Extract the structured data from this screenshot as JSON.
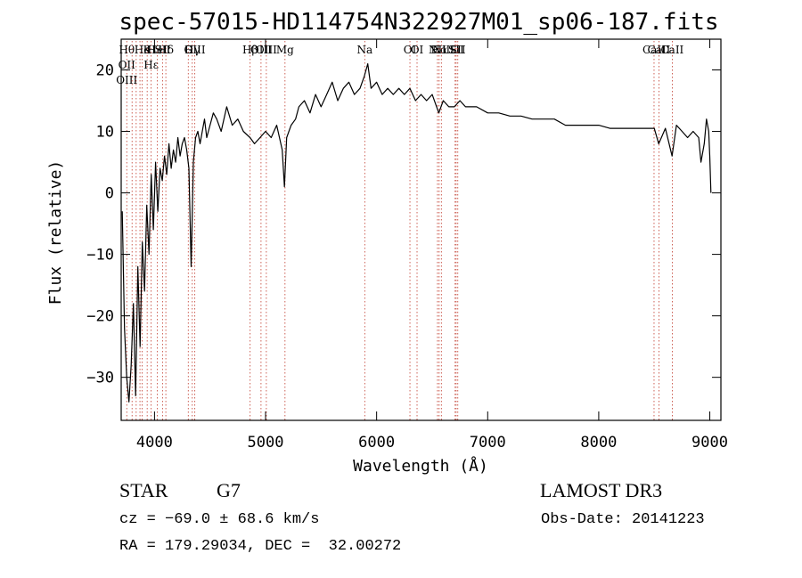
{
  "chart_data": {
    "type": "line",
    "title": "spec-57015-HD114754N322927M01_sp06-187.fits",
    "xlabel": "Wavelength (Å)",
    "ylabel": "Flux (relative)",
    "xlim": [
      3700,
      9100
    ],
    "ylim": [
      -37,
      25
    ],
    "xticks": [
      4000,
      5000,
      6000,
      7000,
      8000,
      9000
    ],
    "yticks": [
      -30,
      -20,
      -10,
      0,
      10,
      20
    ],
    "grid": false,
    "series": [
      {
        "color": "#000000",
        "x": [
          3710,
          3730,
          3750,
          3770,
          3790,
          3810,
          3830,
          3850,
          3870,
          3890,
          3910,
          3930,
          3950,
          3970,
          3990,
          4010,
          4030,
          4050,
          4070,
          4090,
          4110,
          4130,
          4150,
          4170,
          4190,
          4210,
          4230,
          4250,
          4270,
          4290,
          4310,
          4330,
          4350,
          4370,
          4390,
          4410,
          4430,
          4450,
          4470,
          4500,
          4530,
          4560,
          4600,
          4650,
          4700,
          4750,
          4800,
          4860,
          4900,
          4950,
          5000,
          5050,
          5100,
          5150,
          5170,
          5190,
          5230,
          5270,
          5300,
          5350,
          5400,
          5450,
          5500,
          5550,
          5600,
          5650,
          5700,
          5750,
          5800,
          5850,
          5890,
          5920,
          5950,
          6000,
          6050,
          6100,
          6150,
          6200,
          6250,
          6300,
          6350,
          6400,
          6450,
          6500,
          6560,
          6600,
          6650,
          6700,
          6750,
          6800,
          6900,
          7000,
          7100,
          7200,
          7300,
          7400,
          7500,
          7600,
          7700,
          7800,
          7900,
          8000,
          8100,
          8200,
          8300,
          8400,
          8500,
          8540,
          8600,
          8660,
          8700,
          8750,
          8800,
          8850,
          8900,
          8920,
          8950,
          8970,
          8990,
          9000,
          9010
        ],
        "y": [
          -3,
          -22,
          -30,
          -34,
          -28,
          -18,
          -33,
          -12,
          -25,
          -8,
          -16,
          -2,
          -10,
          3,
          -6,
          5,
          -3,
          4,
          2,
          6,
          3,
          8,
          4,
          7,
          5,
          9,
          6,
          8,
          9,
          7,
          4,
          -12,
          5,
          9,
          10,
          8,
          10,
          12,
          9,
          11,
          13,
          12,
          10,
          14,
          11,
          12,
          10,
          9,
          8,
          9,
          10,
          9,
          11,
          7,
          1,
          9,
          11,
          12,
          14,
          15,
          13,
          16,
          14,
          16,
          18,
          15,
          17,
          18,
          16,
          17,
          19,
          21,
          17,
          18,
          16,
          17,
          16,
          17,
          16,
          17,
          15,
          16,
          15,
          16,
          13,
          15,
          14,
          14,
          15,
          14,
          14,
          13,
          13,
          12.5,
          12.5,
          12,
          12,
          12,
          11,
          11,
          11,
          11,
          10.5,
          10.5,
          10.5,
          10.5,
          10.5,
          8,
          10.5,
          6,
          11,
          10,
          9,
          10,
          9,
          5,
          8,
          12,
          10,
          6,
          0
        ]
      }
    ],
    "lines": [
      {
        "x": 3750,
        "labels": [
          "Hθ",
          "OII",
          "OIII"
        ]
      },
      {
        "x": 3798,
        "labels": []
      },
      {
        "x": 3835,
        "labels": []
      },
      {
        "x": 3869,
        "labels": []
      },
      {
        "x": 3889,
        "labels": [
          "He"
        ]
      },
      {
        "x": 3934,
        "labels": [
          "K"
        ]
      },
      {
        "x": 3970,
        "labels": [
          "H",
          "Hε"
        ]
      },
      {
        "x": 4026,
        "labels": [
          "HeI"
        ]
      },
      {
        "x": 4072,
        "labels": [
          "SII"
        ]
      },
      {
        "x": 4102,
        "labels": [
          "Hδ"
        ]
      },
      {
        "x": 4304,
        "labels": [
          "G"
        ]
      },
      {
        "x": 4340,
        "labels": [
          "Hγ"
        ]
      },
      {
        "x": 4363,
        "labels": [
          "OIII"
        ]
      },
      {
        "x": 4861,
        "labels": [
          "Hβ"
        ]
      },
      {
        "x": 4959,
        "labels": [
          "OIII"
        ]
      },
      {
        "x": 5007,
        "labels": [
          "OIII"
        ]
      },
      {
        "x": 5175,
        "labels": [
          "Mg"
        ]
      },
      {
        "x": 5893,
        "labels": [
          "Na"
        ]
      },
      {
        "x": 6300,
        "labels": [
          "OI"
        ]
      },
      {
        "x": 6364,
        "labels": [
          "OI"
        ]
      },
      {
        "x": 6548,
        "labels": [
          "NII"
        ]
      },
      {
        "x": 6563,
        "labels": [
          "Hα"
        ]
      },
      {
        "x": 6583,
        "labels": [
          "NII"
        ]
      },
      {
        "x": 6707,
        "labels": [
          "Li"
        ]
      },
      {
        "x": 6716,
        "labels": [
          "SII"
        ]
      },
      {
        "x": 6731,
        "labels": [
          "SII"
        ]
      },
      {
        "x": 8498,
        "labels": [
          "CaII"
        ]
      },
      {
        "x": 8542,
        "labels": [
          "CaII"
        ]
      },
      {
        "x": 8662,
        "labels": [
          "CaII"
        ]
      }
    ]
  },
  "info": {
    "class": "STAR",
    "subclass": "G7",
    "survey": "LAMOST DR3",
    "cz": "cz = −69.0 ± 68.6 km/s",
    "obs_date": "Obs-Date: 20141223",
    "radec": "RA = 179.29034, DEC =  32.00272"
  }
}
